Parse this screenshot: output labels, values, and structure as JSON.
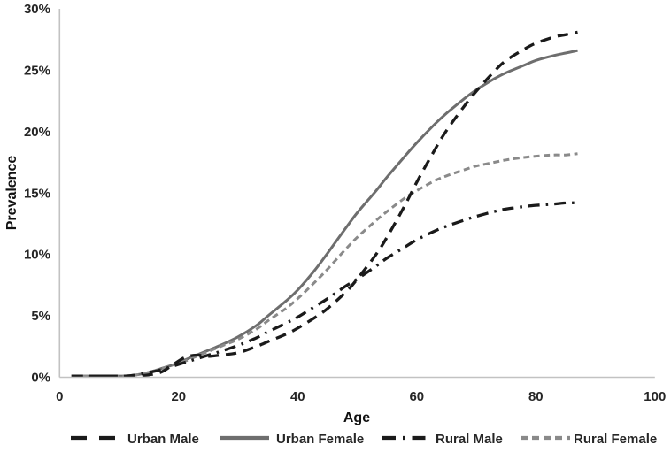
{
  "chart_data": {
    "type": "line",
    "title": "",
    "xlabel": "Age",
    "ylabel": "Prevalence",
    "xlim": [
      0,
      100
    ],
    "ylim": [
      "0%",
      "30%"
    ],
    "grid": false,
    "legend_position": "bottom",
    "x_ticks": [
      "0",
      "20",
      "40",
      "60",
      "80",
      "100"
    ],
    "y_ticks": [
      "0%",
      "5%",
      "10%",
      "15%",
      "20%",
      "25%",
      "30%"
    ],
    "axis_color": "#c2c2c2",
    "ages": [
      2,
      5,
      8,
      11,
      13,
      15,
      17,
      19,
      21,
      23,
      25,
      27,
      30,
      33,
      35,
      38,
      40,
      43,
      45,
      48,
      50,
      53,
      55,
      58,
      60,
      63,
      65,
      68,
      70,
      73,
      75,
      78,
      80,
      83,
      85,
      87
    ],
    "series": [
      {
        "name": "Urban Male",
        "color": "#1a1a1a",
        "style": "dashed",
        "width": 3.3,
        "dash": "12 8",
        "legend_dash": "18 14",
        "values": [
          0.1,
          0.1,
          0.1,
          0.1,
          0.1,
          0.2,
          0.4,
          1.0,
          1.6,
          1.8,
          1.7,
          1.8,
          2.0,
          2.5,
          2.9,
          3.5,
          4.0,
          4.9,
          5.6,
          6.9,
          8.0,
          9.9,
          11.4,
          14.0,
          15.9,
          18.5,
          20.1,
          22.1,
          23.3,
          24.9,
          25.8,
          26.7,
          27.2,
          27.7,
          27.9,
          28.1
        ]
      },
      {
        "name": "Urban Female",
        "color": "#6e6e6e",
        "style": "solid",
        "width": 3.0,
        "dash": "",
        "legend_dash": "",
        "values": [
          0.1,
          0.1,
          0.1,
          0.1,
          0.2,
          0.4,
          0.7,
          1.0,
          1.4,
          1.8,
          2.2,
          2.6,
          3.3,
          4.2,
          5.0,
          6.2,
          7.1,
          8.8,
          10.1,
          12.1,
          13.4,
          15.1,
          16.3,
          18.0,
          19.1,
          20.6,
          21.5,
          22.7,
          23.4,
          24.3,
          24.8,
          25.4,
          25.8,
          26.2,
          26.4,
          26.6
        ]
      },
      {
        "name": "Rural Male",
        "color": "#1a1a1a",
        "style": "dash-dot",
        "width": 3.3,
        "dash": "13 7 2.5 7",
        "legend_dash": "15 8 2.5 8",
        "values": [
          0.1,
          0.1,
          0.1,
          0.1,
          0.2,
          0.4,
          0.6,
          0.9,
          1.2,
          1.5,
          1.8,
          2.1,
          2.6,
          3.2,
          3.7,
          4.4,
          4.9,
          5.8,
          6.4,
          7.4,
          8.0,
          9.0,
          9.7,
          10.6,
          11.2,
          11.9,
          12.3,
          12.8,
          13.1,
          13.5,
          13.7,
          13.9,
          14.0,
          14.1,
          14.2,
          14.2
        ]
      },
      {
        "name": "Rural Female",
        "color": "#8a8a8a",
        "style": "dashed",
        "width": 3.0,
        "dash": "7 4.5",
        "legend_dash": "8 5",
        "values": [
          0.1,
          0.1,
          0.1,
          0.1,
          0.2,
          0.4,
          0.7,
          1.0,
          1.3,
          1.7,
          2.1,
          2.5,
          3.1,
          3.9,
          4.6,
          5.6,
          6.4,
          7.8,
          8.8,
          10.4,
          11.4,
          12.7,
          13.5,
          14.6,
          15.2,
          16.0,
          16.4,
          16.9,
          17.2,
          17.5,
          17.7,
          17.9,
          18.0,
          18.1,
          18.1,
          18.2
        ]
      }
    ]
  }
}
